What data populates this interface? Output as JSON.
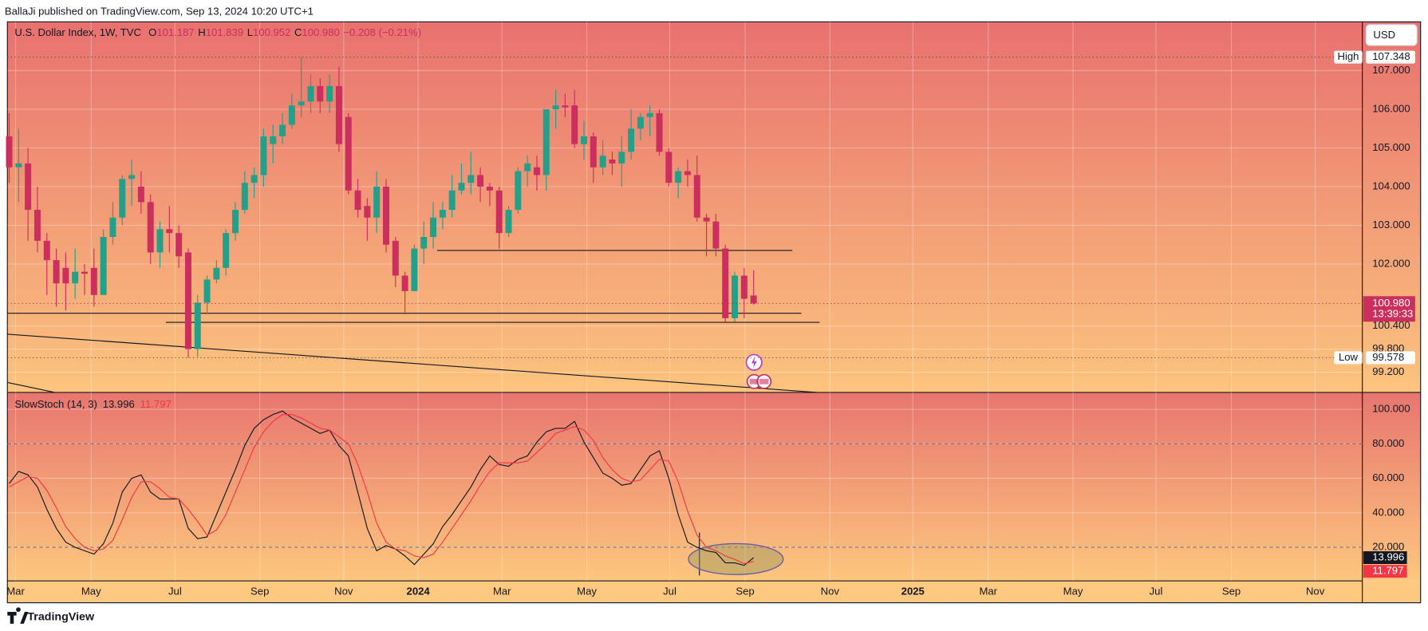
{
  "header": {
    "publisher": "BallaJi published on TradingView.com, Sep 13, 2024 10:20 UTC+1",
    "currency": "USD",
    "brand": "TradingView"
  },
  "chart_data": [
    {
      "type": "candlestick",
      "title": "U.S. Dollar Index, 1W, TVC",
      "ohlc_prefixes": [
        "O",
        "H",
        "L",
        "C"
      ],
      "change": "−0.208 (−0.21%)",
      "last_close_label": "100.980",
      "high_label": "High",
      "low_label": "Low",
      "countdown": "13:39:33",
      "up_color": "#22a08a",
      "down_color": "#cc2e5e",
      "candles": {
        "open": [
          105.3,
          104.5,
          104.6,
          103.4,
          102.6,
          102.1,
          101.9,
          101.5,
          101.8,
          101.9,
          101.2,
          102.7,
          103.2,
          104.2,
          104.0,
          103.6,
          102.3,
          102.9,
          102.8,
          102.3,
          99.8,
          101.0,
          101.6,
          101.9,
          102.8,
          103.4,
          104.1,
          104.3,
          105.1,
          105.3,
          105.6,
          106.1,
          106.2,
          106.6,
          106.2,
          106.6,
          105.8,
          103.9,
          103.5,
          103.2,
          104.0,
          102.6,
          101.7,
          101.3,
          102.4,
          102.7,
          103.2,
          103.4,
          103.9,
          104.1,
          104.3,
          104.0,
          103.9,
          102.8,
          103.4,
          104.4,
          104.5,
          104.3,
          106.0,
          106.1,
          106.1,
          105.1,
          105.3,
          104.5,
          104.7,
          104.6,
          104.9,
          105.5,
          105.8,
          105.9,
          104.9,
          104.1,
          104.4,
          104.3,
          103.2,
          103.1,
          102.4,
          100.6,
          101.7,
          101.187
        ],
        "high": [
          105.9,
          105.5,
          105.0,
          104.0,
          102.8,
          102.4,
          102.3,
          102.4,
          102.0,
          102.4,
          102.9,
          103.6,
          104.3,
          104.7,
          104.4,
          103.8,
          103.1,
          103.5,
          103.0,
          102.4,
          101.2,
          101.7,
          102.1,
          102.9,
          103.6,
          104.4,
          104.5,
          105.5,
          105.6,
          105.9,
          106.4,
          107.348,
          106.9,
          106.8,
          106.9,
          107.1,
          105.9,
          104.2,
          103.7,
          104.4,
          104.2,
          102.7,
          101.8,
          102.5,
          103.1,
          103.6,
          103.6,
          104.3,
          104.6,
          104.9,
          104.5,
          104.1,
          104.0,
          103.5,
          104.5,
          104.8,
          104.8,
          106.0,
          106.5,
          106.4,
          106.5,
          105.7,
          105.4,
          105.2,
          104.9,
          105.3,
          106.0,
          105.9,
          106.1,
          106.0,
          105.0,
          104.5,
          104.7,
          104.8,
          103.3,
          103.3,
          102.5,
          101.8,
          101.9,
          101.839
        ],
        "low": [
          104.1,
          103.6,
          102.6,
          102.3,
          101.2,
          100.9,
          100.8,
          101.1,
          101.2,
          100.9,
          101.2,
          102.5,
          103.0,
          103.5,
          103.3,
          102.0,
          101.9,
          102.3,
          101.9,
          99.578,
          99.6,
          100.7,
          101.5,
          101.7,
          102.6,
          103.3,
          103.7,
          104.0,
          104.6,
          105.1,
          105.5,
          105.8,
          105.9,
          105.9,
          105.9,
          104.9,
          103.8,
          103.2,
          102.6,
          102.8,
          102.3,
          101.4,
          100.7,
          101.3,
          102.0,
          102.4,
          102.9,
          103.2,
          103.8,
          103.8,
          103.6,
          103.5,
          102.4,
          102.7,
          103.3,
          104.0,
          103.9,
          103.9,
          105.5,
          105.8,
          105.0,
          104.7,
          104.1,
          104.3,
          104.3,
          104.0,
          104.7,
          105.2,
          105.3,
          104.8,
          104.0,
          103.7,
          104.0,
          103.1,
          102.2,
          102.2,
          100.5,
          100.5,
          100.6,
          100.952
        ],
        "close": [
          104.5,
          104.6,
          103.4,
          102.6,
          102.1,
          101.5,
          101.5,
          101.8,
          101.75,
          101.2,
          102.7,
          103.2,
          104.2,
          104.3,
          103.6,
          102.3,
          102.9,
          102.8,
          102.2,
          99.8,
          101.0,
          101.6,
          101.9,
          102.8,
          103.4,
          104.1,
          104.3,
          105.3,
          105.3,
          105.6,
          106.1,
          106.2,
          106.6,
          106.2,
          106.6,
          105.1,
          103.9,
          103.4,
          103.2,
          104.0,
          102.5,
          101.7,
          101.3,
          102.4,
          102.7,
          103.2,
          103.4,
          103.9,
          104.1,
          104.3,
          104.0,
          103.9,
          102.8,
          103.4,
          104.4,
          104.6,
          104.3,
          106.0,
          106.1,
          106.05,
          105.1,
          105.3,
          104.5,
          104.8,
          104.6,
          104.9,
          105.5,
          105.8,
          105.9,
          104.9,
          104.1,
          104.4,
          104.3,
          103.2,
          103.1,
          102.4,
          100.6,
          101.7,
          101.1,
          100.98
        ]
      },
      "ylim": [
        98.68,
        108.26
      ],
      "yticks": [
        {
          "value": 99.2,
          "label": "99.200"
        },
        {
          "value": 99.8,
          "label": "99.800"
        },
        {
          "value": 100.4,
          "label": "100.400"
        },
        {
          "value": 102,
          "label": "102.000"
        },
        {
          "value": 103,
          "label": "103.000"
        },
        {
          "value": 104,
          "label": "104.000"
        },
        {
          "value": 105,
          "label": "105.000"
        },
        {
          "value": 106,
          "label": "106.000"
        },
        {
          "value": 107,
          "label": "107.000"
        }
      ],
      "grid": true
    },
    {
      "type": "line",
      "title": "SlowStoch (14, 3)",
      "series": [
        {
          "color": "#131722",
          "values": [
            57,
            64,
            62,
            55,
            42,
            31,
            23,
            20,
            18,
            16,
            22,
            34,
            52,
            60,
            62,
            52,
            48,
            48,
            48,
            31,
            25,
            26,
            39,
            52,
            65,
            79,
            89,
            94,
            97,
            99,
            95,
            92,
            89,
            86,
            88,
            79,
            73,
            52,
            31,
            18,
            21,
            19,
            15,
            10,
            16,
            22,
            32,
            39,
            47,
            55,
            65,
            73,
            68,
            67,
            71,
            73,
            81,
            87,
            89,
            89,
            93,
            81,
            72,
            63,
            60,
            56,
            57,
            65,
            73,
            76,
            60,
            39,
            23,
            20,
            18,
            17,
            11,
            11,
            9.5,
            13.996
          ]
        },
        {
          "color": "#f23645",
          "values": [
            55,
            58,
            61,
            60,
            53,
            43,
            32,
            25,
            20,
            18,
            19,
            24,
            36,
            49,
            58,
            58,
            54,
            49,
            48,
            42,
            35,
            27,
            30,
            39,
            52,
            65,
            78,
            87,
            93,
            97,
            97,
            95,
            92,
            89,
            88,
            84,
            80,
            68,
            52,
            34,
            23,
            19,
            18,
            15,
            14,
            16,
            23,
            31,
            39,
            47,
            56,
            64,
            69,
            69,
            69,
            70,
            75,
            80,
            86,
            88,
            90,
            88,
            82,
            72,
            65,
            60,
            58,
            59,
            65,
            71,
            70,
            58,
            41,
            27,
            20,
            18,
            15,
            13,
            10.5,
            11.797
          ]
        }
      ],
      "ylim": [
        0.5,
        109.8
      ],
      "yticks": [
        {
          "value": 20,
          "label": "20.000"
        },
        {
          "value": 40,
          "label": "40.000"
        },
        {
          "value": 60,
          "label": "60.000"
        },
        {
          "value": 80,
          "label": "80.000"
        },
        {
          "value": 100,
          "label": "100.000"
        }
      ],
      "levels": [
        80,
        20
      ],
      "xlim": [
        -0.19,
        143.6
      ],
      "xticks": [
        {
          "value": 0.68,
          "label": "Mar"
        },
        {
          "value": 8.7,
          "label": "May"
        },
        {
          "value": 17.6,
          "label": "Jul"
        },
        {
          "value": 26.6,
          "label": "Sep"
        },
        {
          "value": 35.5,
          "label": "Nov"
        },
        {
          "value": 43.4,
          "label": "2024"
        },
        {
          "value": 52.3,
          "label": "Mar"
        },
        {
          "value": 61.3,
          "label": "May"
        },
        {
          "value": 70.1,
          "label": "Jul"
        },
        {
          "value": 78.1,
          "label": "Sep"
        },
        {
          "value": 87.1,
          "label": "Nov"
        },
        {
          "value": 95.9,
          "label": "2025"
        },
        {
          "value": 103.9,
          "label": "Mar"
        },
        {
          "value": 112.9,
          "label": "May"
        },
        {
          "value": 121.7,
          "label": "Jul"
        },
        {
          "value": 129.7,
          "label": "Sep"
        },
        {
          "value": 138.6,
          "label": "Nov"
        }
      ],
      "grid": true
    }
  ]
}
